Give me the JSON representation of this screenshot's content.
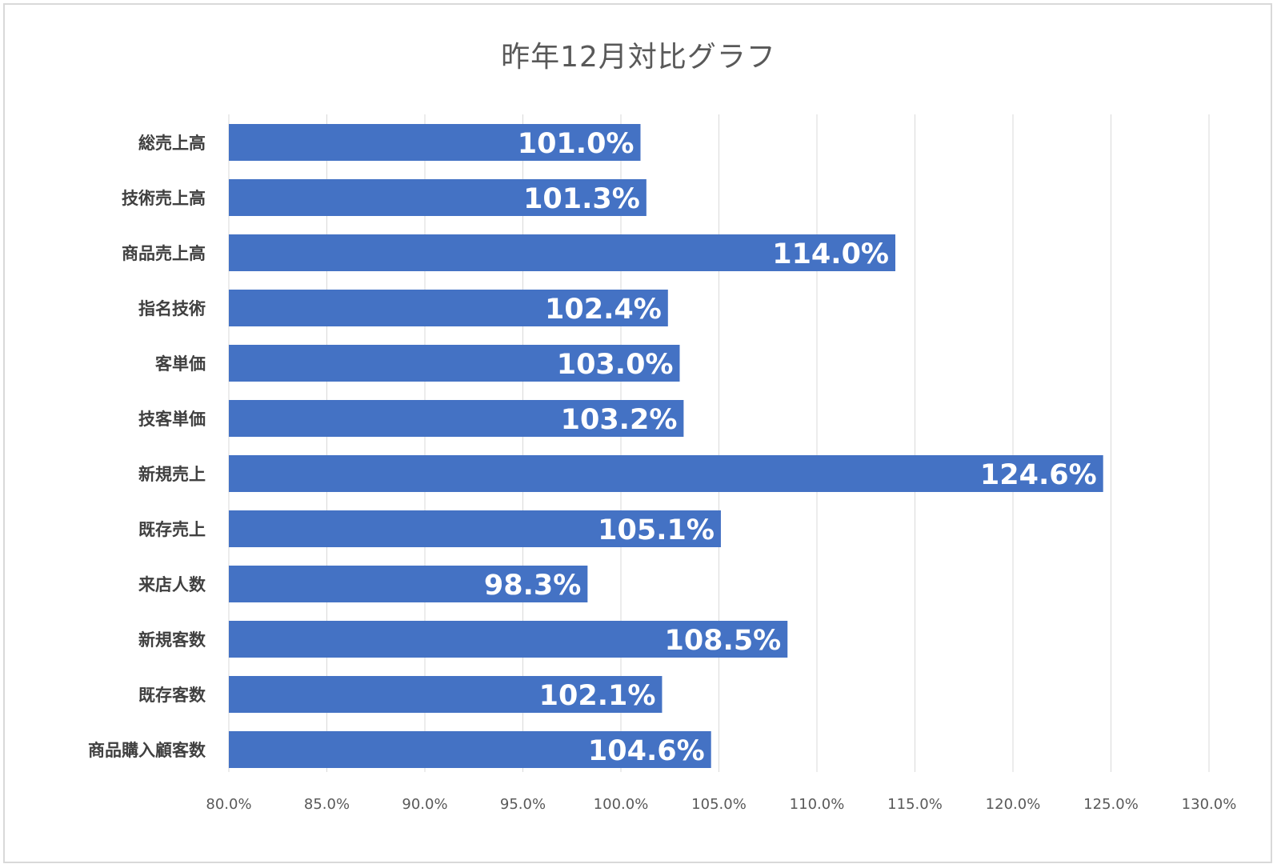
{
  "chart_data": {
    "type": "bar",
    "orientation": "horizontal",
    "title": "昨年12月対比グラフ",
    "categories": [
      "総売上高",
      "技術売上高",
      "商品売上高",
      "指名技術",
      "客単価",
      "技客単価",
      "新規売上",
      "既存売上",
      "来店人数",
      "新規客数",
      "既存客数",
      "商品購入顧客数"
    ],
    "values": [
      101.0,
      101.3,
      114.0,
      102.4,
      103.0,
      103.2,
      124.6,
      105.1,
      98.3,
      108.5,
      102.1,
      104.6
    ],
    "data_labels": [
      "101.0%",
      "101.3%",
      "114.0%",
      "102.4%",
      "103.0%",
      "103.2%",
      "124.6%",
      "105.1%",
      "98.3%",
      "108.5%",
      "102.1%",
      "104.6%"
    ],
    "xlim": [
      80,
      130
    ],
    "x_ticks": [
      80,
      85,
      90,
      95,
      100,
      105,
      110,
      115,
      120,
      125,
      130
    ],
    "x_tick_labels": [
      "80.0%",
      "85.0%",
      "90.0%",
      "95.0%",
      "100.0%",
      "105.0%",
      "110.0%",
      "115.0%",
      "120.0%",
      "125.0%",
      "130.0%"
    ],
    "grid": true,
    "legend": "none",
    "bar_color": "#4472c4",
    "grid_color": "#d9d9d9"
  }
}
